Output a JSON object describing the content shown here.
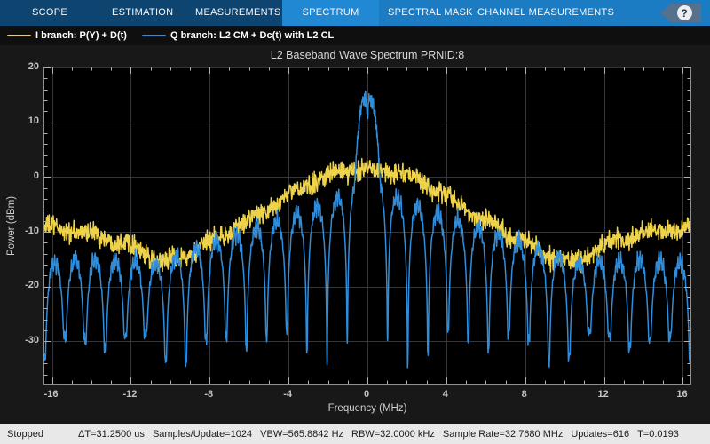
{
  "tabbar": {
    "tabs": [
      {
        "label": "SCOPE",
        "active": false
      },
      {
        "label": "ESTIMATION",
        "active": false
      },
      {
        "label": "MEASUREMENTS",
        "active": false
      },
      {
        "label": "SPECTRUM",
        "active": true
      },
      {
        "label": "SPECTRAL MASK",
        "active": false
      },
      {
        "label": "CHANNEL MEASUREMENTS",
        "active": false
      }
    ],
    "help_glyph": "?"
  },
  "legend": {
    "items": [
      {
        "label": "I branch: P(Y) + D(t)",
        "color": "#edd24a"
      },
      {
        "label": "Q branch: L2 CM + Dc(t) with L2 CL",
        "color": "#2f8ddb"
      }
    ]
  },
  "chart_data": {
    "type": "line",
    "title": "L2 Baseband Wave Spectrum PRNID:8",
    "xlabel": "Frequency (MHz)",
    "ylabel": "Power (dBm)",
    "xlim": [
      -16.384,
      16.384
    ],
    "ylim": [
      -37.7,
      20
    ],
    "x_ticks": [
      -16,
      -12,
      -8,
      -4,
      0,
      4,
      8,
      12,
      16
    ],
    "y_ticks": [
      20,
      10,
      0,
      -10,
      -20,
      -30
    ],
    "x_minor_step_mhz": 1,
    "y_minor_step_db": 2,
    "grid": true,
    "plot_background": "#000000",
    "series": [
      {
        "name": "I branch: P(Y) + D(t)",
        "color": "#edd24a",
        "kind": "noisy_sinc2",
        "envelope_dbm_vs_abs_mhz": [
          [
            0,
            1.6
          ],
          [
            1,
            1.2
          ],
          [
            2,
            0.3
          ],
          [
            3,
            -1.4
          ],
          [
            4,
            -3.4
          ],
          [
            5,
            -5.8
          ],
          [
            6,
            -8.0
          ],
          [
            7,
            -10.0
          ],
          [
            8,
            -12.0
          ],
          [
            9,
            -14.0
          ],
          [
            9.5,
            -14.7
          ],
          [
            10.4,
            -15.6
          ],
          [
            11,
            -14.8
          ],
          [
            12,
            -12.3
          ],
          [
            13,
            -11.3
          ],
          [
            14,
            -10.4
          ],
          [
            15,
            -9.8
          ],
          [
            16.4,
            -9.2
          ]
        ],
        "noise_peak_db": 2.8
      },
      {
        "name": "Q branch: L2 CM + Dc(t) with L2 CL",
        "color": "#2f8ddb",
        "kind": "lobed_plus_spike",
        "lobe_null_spacing_mhz": 1.023,
        "lobe_top_envelope_dbm_vs_abs_mhz": [
          [
            0,
            2.5
          ],
          [
            1.5,
            -3.8
          ],
          [
            2.5,
            -5.2
          ],
          [
            4,
            -7.4
          ],
          [
            5.5,
            -9.0
          ],
          [
            7,
            -10.8
          ],
          [
            8.5,
            -12.8
          ],
          [
            9.7,
            -14.3
          ],
          [
            10.8,
            -15.8
          ],
          [
            12,
            -15.2
          ],
          [
            13.5,
            -15.0
          ],
          [
            15,
            -15.2
          ],
          [
            16.4,
            -15.6
          ]
        ],
        "null_floor_dbm": -31,
        "spike": {
          "peak_dbm": 14.5,
          "half_width_mhz": 0.7,
          "center_dip_db": 3.6
        }
      }
    ]
  },
  "status": {
    "state": "Stopped",
    "items": [
      "ΔT=31.2500 us",
      "Samples/Update=1024",
      "VBW=565.8842 Hz",
      "RBW=32.0000 kHz",
      "Sample Rate=32.7680 MHz",
      "Updates=616",
      "T=0.0193"
    ]
  },
  "theme": {
    "tab_dark": "#0e4470",
    "tab_light": "#1b7cc4",
    "tab_active": "#2189d3",
    "grid_color": "#35353a",
    "tick_color": "#b0b0b0",
    "status_bg": "#e8e8e8"
  }
}
